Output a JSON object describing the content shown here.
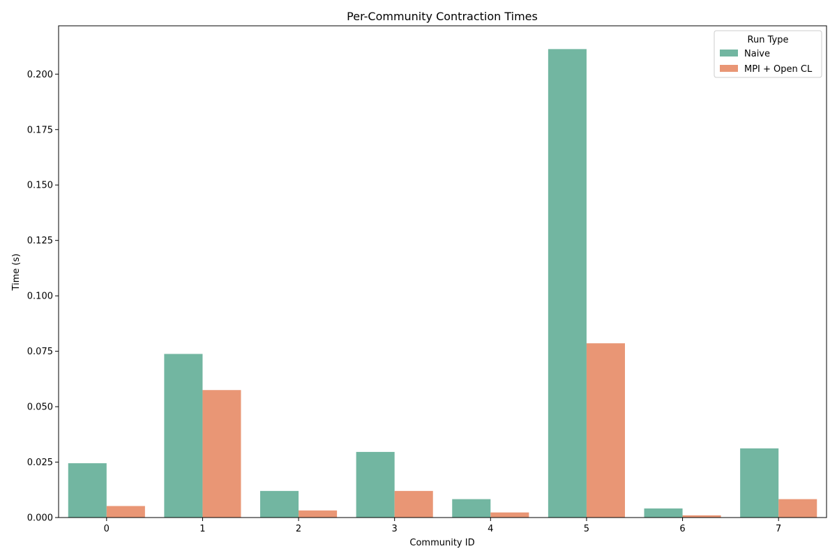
{
  "chart_data": {
    "type": "bar",
    "title": "Per-Community Contraction Times",
    "xlabel": "Community ID",
    "ylabel": "Time (s)",
    "categories": [
      "0",
      "1",
      "2",
      "3",
      "4",
      "5",
      "6",
      "7"
    ],
    "series": [
      {
        "name": "Naive",
        "color": "#72b6a1",
        "values": [
          0.0245,
          0.0738,
          0.012,
          0.0296,
          0.0083,
          0.2113,
          0.0041,
          0.0312
        ]
      },
      {
        "name": "MPI + Open CL",
        "color": "#e99675",
        "values": [
          0.0052,
          0.0575,
          0.0032,
          0.012,
          0.0023,
          0.0786,
          0.001,
          0.0083
        ]
      }
    ],
    "ylim": [
      0,
      0.2218
    ],
    "yticks": [
      "0.000",
      "0.025",
      "0.050",
      "0.075",
      "0.100",
      "0.125",
      "0.150",
      "0.175",
      "0.200"
    ],
    "grid": false,
    "legend": {
      "title": "Run Type",
      "position": "top-right"
    }
  }
}
